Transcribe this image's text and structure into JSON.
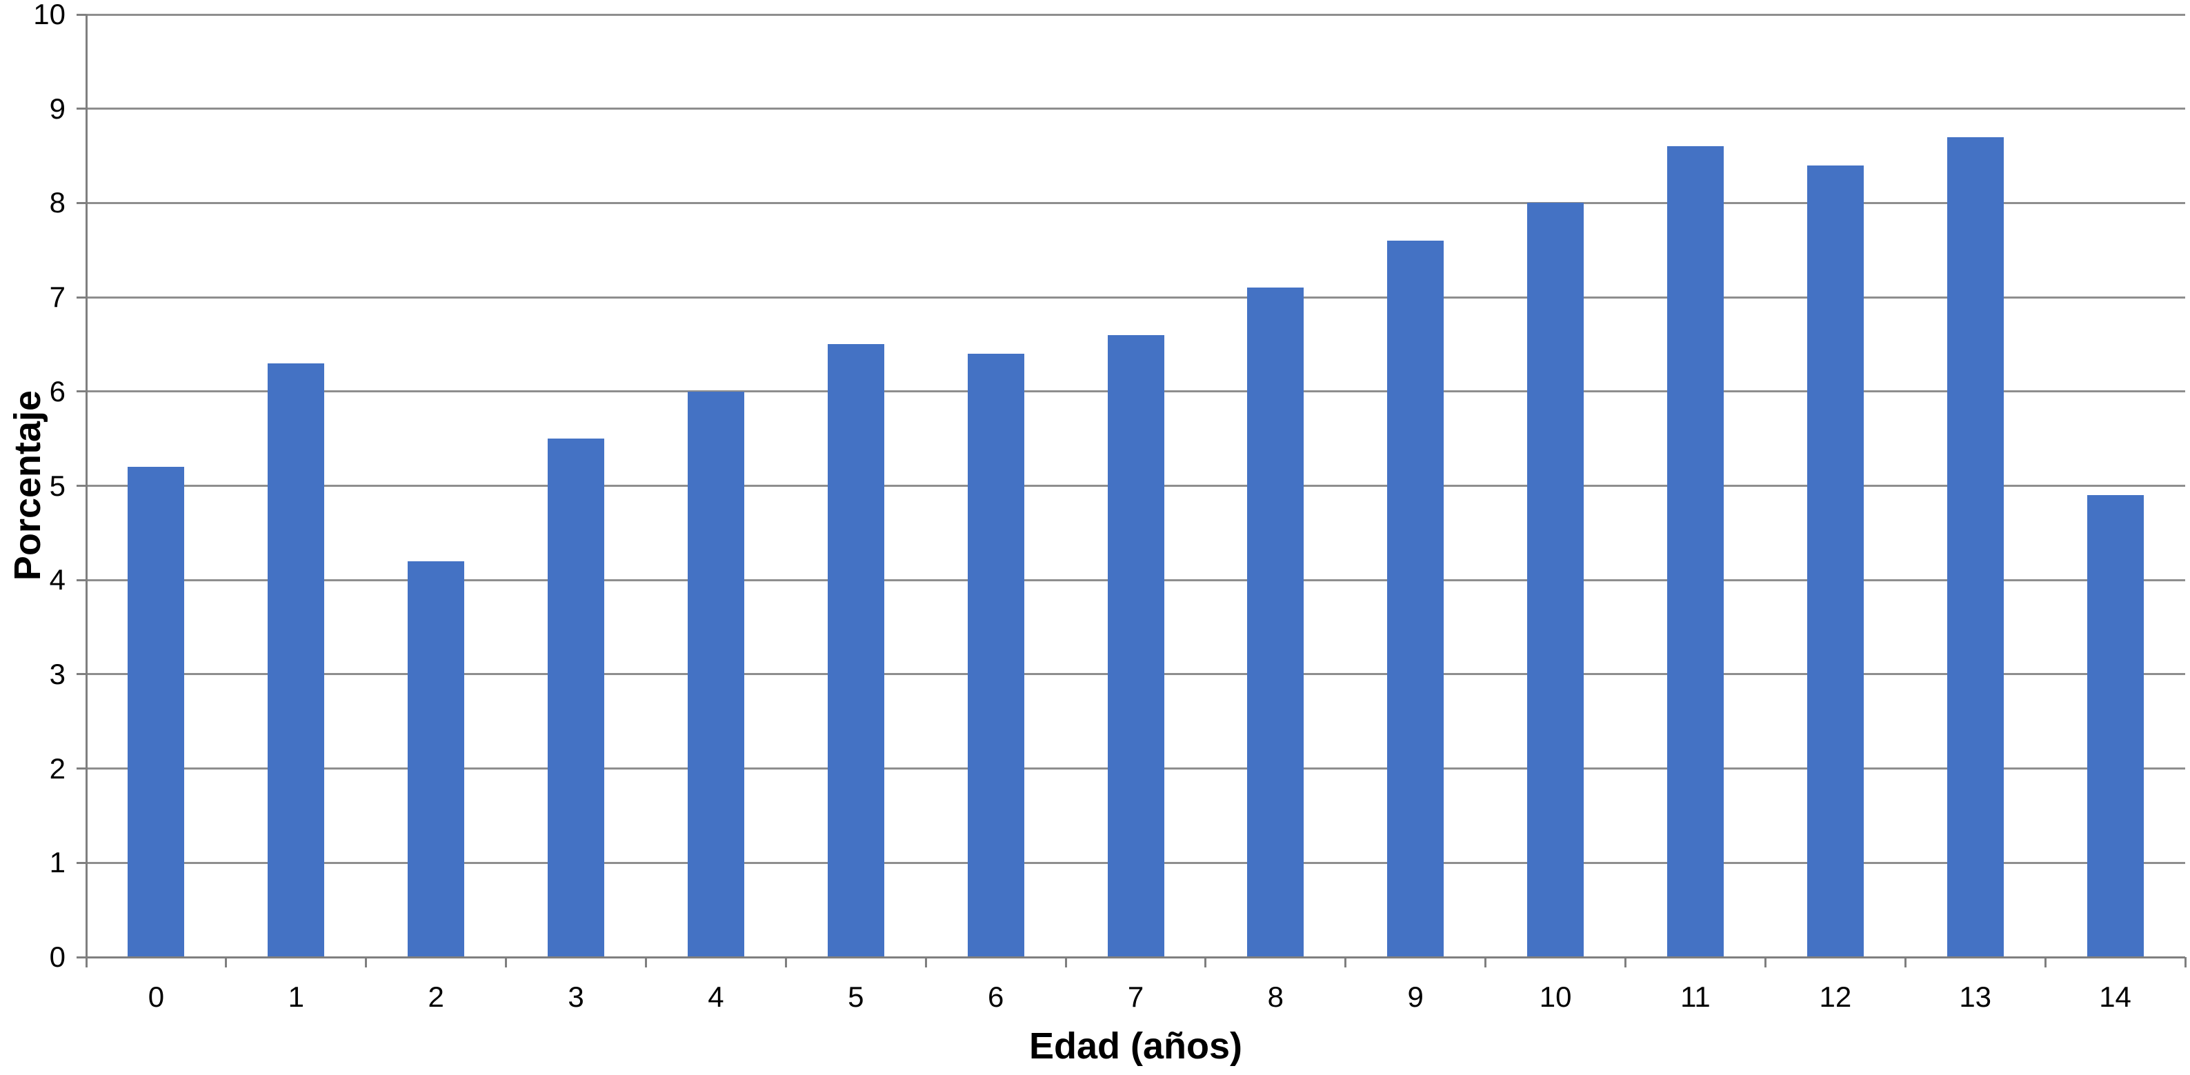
{
  "chart_data": {
    "type": "bar",
    "title": "",
    "xlabel": "Edad (años)",
    "ylabel": "Porcentaje",
    "categories": [
      "0",
      "1",
      "2",
      "3",
      "4",
      "5",
      "6",
      "7",
      "8",
      "9",
      "10",
      "11",
      "12",
      "13",
      "14"
    ],
    "values": [
      5.2,
      6.3,
      4.2,
      5.5,
      6.0,
      6.5,
      6.4,
      6.6,
      7.1,
      7.6,
      8.0,
      8.6,
      8.4,
      8.7,
      4.9
    ],
    "ylim": [
      0,
      10
    ],
    "ytick_step": 1,
    "yticks": [
      "0",
      "1",
      "2",
      "3",
      "4",
      "5",
      "6",
      "7",
      "8",
      "9",
      "10"
    ],
    "grid": true,
    "legend": false,
    "colors": {
      "bar": "#4472C4",
      "gridline": "#8e8e8e",
      "axis": "#7f7f7f",
      "text": "#000000",
      "background": "#ffffff"
    }
  }
}
